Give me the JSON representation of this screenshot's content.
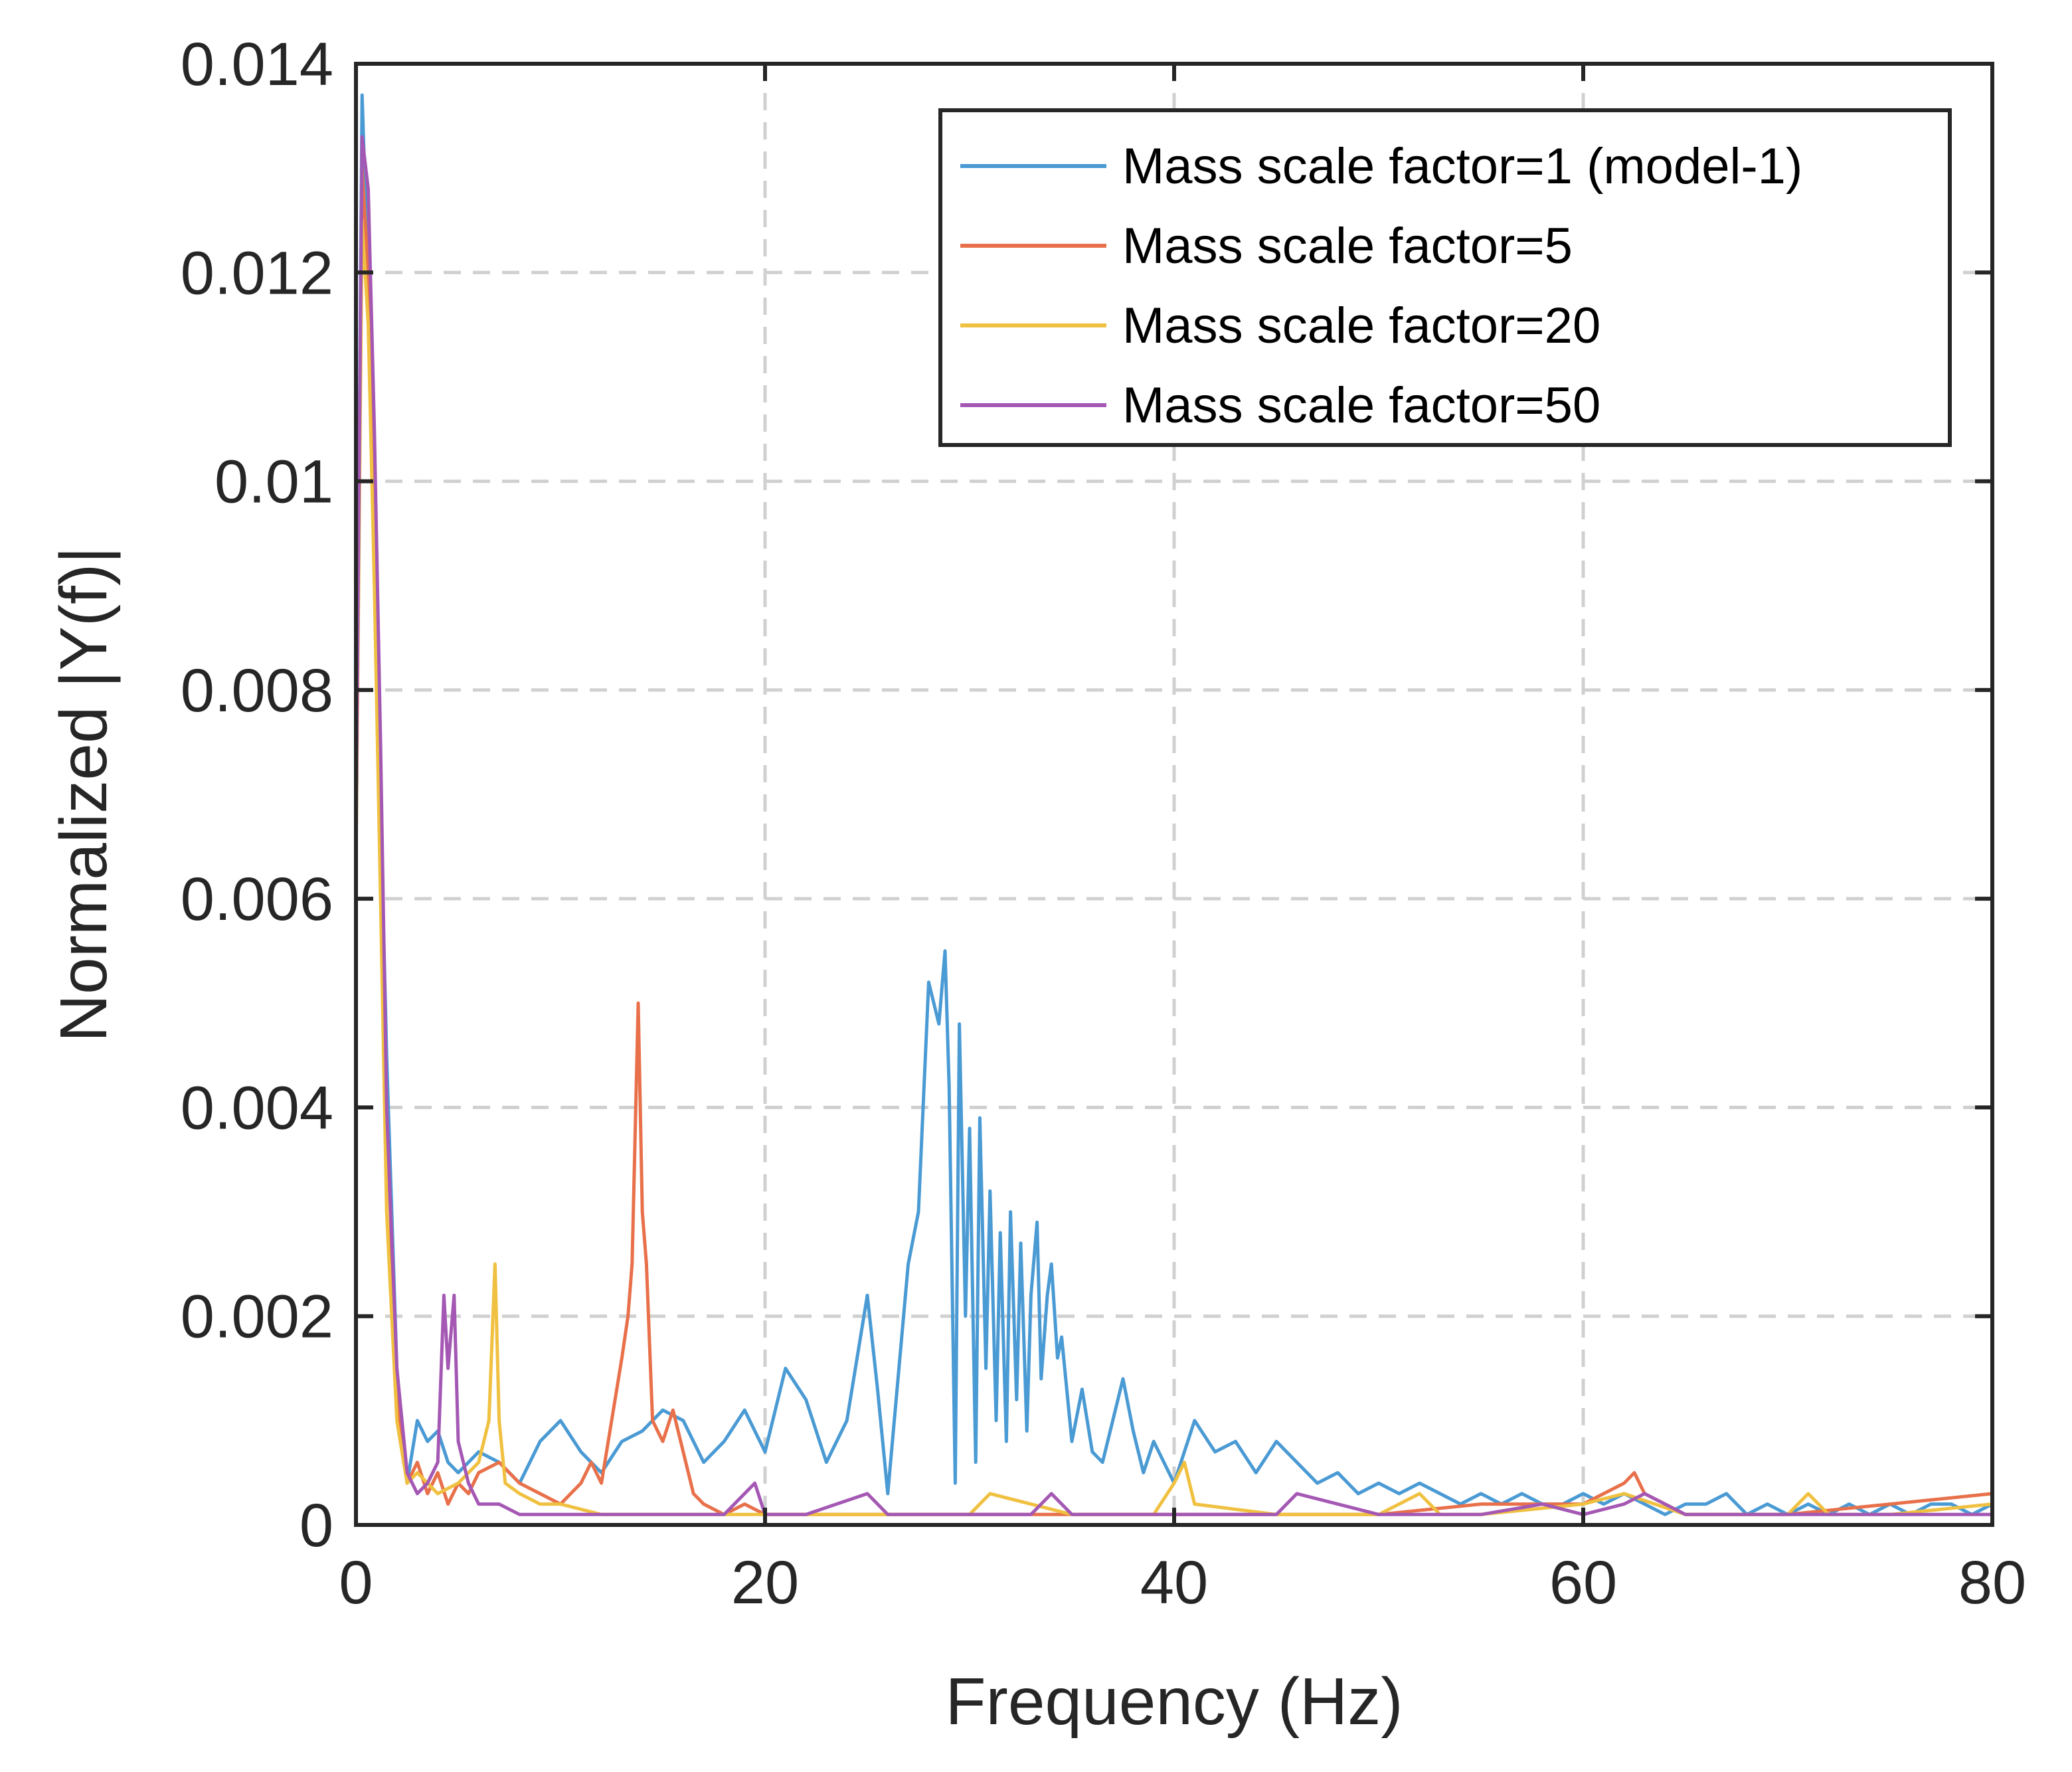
{
  "chart_data": {
    "type": "line",
    "xlabel": "Frequency (Hz)",
    "ylabel": "Normalized |Y(f)|",
    "xlim": [
      0,
      80
    ],
    "ylim": [
      0,
      0.014
    ],
    "xticks": [
      0,
      20,
      40,
      60,
      80
    ],
    "xtick_labels": [
      "0",
      "20",
      "40",
      "60",
      "80"
    ],
    "yticks": [
      0,
      0.002,
      0.004,
      0.006,
      0.008,
      0.01,
      0.012,
      0.014
    ],
    "ytick_labels": [
      "0",
      "0.002",
      "0.004",
      "0.006",
      "0.008",
      "0.01",
      "0.012",
      "0.014"
    ],
    "grid": true,
    "legend_position": "top-right",
    "series": [
      {
        "name": "Mass scale factor=1 (model-1)",
        "color": "#4a9ad4",
        "x": [
          0,
          0.3,
          0.5,
          0.8,
          1.0,
          1.5,
          2.0,
          2.5,
          3.0,
          3.5,
          4.0,
          4.5,
          5.0,
          6.0,
          7.0,
          8.0,
          9.0,
          10.0,
          11.0,
          12.0,
          13.0,
          14.0,
          15.0,
          16.0,
          17.0,
          18.0,
          19.0,
          20.0,
          21.0,
          22.0,
          23.0,
          24.0,
          25.0,
          25.5,
          26.0,
          26.5,
          27.0,
          27.5,
          28.0,
          28.5,
          28.8,
          29.0,
          29.3,
          29.5,
          29.8,
          30.0,
          30.3,
          30.5,
          30.8,
          31.0,
          31.3,
          31.5,
          31.8,
          32.0,
          32.3,
          32.5,
          32.8,
          33.0,
          33.3,
          33.5,
          33.8,
          34.0,
          34.3,
          34.5,
          35.0,
          35.5,
          36.0,
          36.5,
          37.0,
          37.5,
          38.0,
          38.5,
          39.0,
          40.0,
          41.0,
          42.0,
          43.0,
          44.0,
          45.0,
          46.0,
          47.0,
          48.0,
          49.0,
          50.0,
          51.0,
          52.0,
          53.0,
          54.0,
          55.0,
          56.0,
          57.0,
          58.0,
          59.0,
          60.0,
          61.0,
          62.0,
          63.0,
          64.0,
          65.0,
          66.0,
          67.0,
          68.0,
          69.0,
          70.0,
          71.0,
          72.0,
          73.0,
          74.0,
          75.0,
          76.0,
          77.0,
          78.0,
          79.0,
          80.0
        ],
        "y": [
          0.0065,
          0.0137,
          0.0125,
          0.011,
          0.0085,
          0.0045,
          0.0015,
          0.0004,
          0.001,
          0.0008,
          0.0009,
          0.0006,
          0.0005,
          0.0007,
          0.0006,
          0.0004,
          0.0008,
          0.001,
          0.0007,
          0.0005,
          0.0008,
          0.0009,
          0.0011,
          0.001,
          0.0006,
          0.0008,
          0.0011,
          0.0007,
          0.0015,
          0.0012,
          0.0006,
          0.001,
          0.0022,
          0.0013,
          0.0003,
          0.0014,
          0.0025,
          0.003,
          0.0052,
          0.0048,
          0.0055,
          0.0042,
          0.0004,
          0.0048,
          0.002,
          0.0038,
          0.0006,
          0.0039,
          0.0015,
          0.0032,
          0.001,
          0.0028,
          0.0008,
          0.003,
          0.0012,
          0.0027,
          0.0009,
          0.0022,
          0.0029,
          0.0014,
          0.0022,
          0.0025,
          0.0016,
          0.0018,
          0.0008,
          0.0013,
          0.0007,
          0.0006,
          0.001,
          0.0014,
          0.0009,
          0.0005,
          0.0008,
          0.0004,
          0.001,
          0.0007,
          0.0008,
          0.0005,
          0.0008,
          0.0006,
          0.0004,
          0.0005,
          0.0003,
          0.0004,
          0.0003,
          0.0004,
          0.0003,
          0.0002,
          0.0003,
          0.0002,
          0.0003,
          0.0002,
          0.0002,
          0.0003,
          0.0002,
          0.0003,
          0.0002,
          0.0001,
          0.0002,
          0.0002,
          0.0003,
          0.0001,
          0.0002,
          0.0001,
          0.0002,
          0.0001,
          0.0002,
          0.0001,
          0.0002,
          0.0001,
          0.0002,
          0.0002,
          0.0001,
          0.0002
        ]
      },
      {
        "name": "Mass scale factor=5",
        "color": "#e8704a",
        "x": [
          0,
          0.3,
          0.6,
          0.9,
          1.2,
          1.5,
          2.0,
          2.5,
          3.0,
          3.5,
          4.0,
          4.5,
          5.0,
          5.5,
          6.0,
          7.0,
          8.0,
          9.0,
          10.0,
          11.0,
          11.5,
          12.0,
          12.5,
          13.0,
          13.3,
          13.5,
          13.8,
          14.0,
          14.2,
          14.5,
          15.0,
          15.5,
          16.0,
          16.5,
          17.0,
          18.0,
          19.0,
          20.0,
          22.0,
          24.0,
          26.0,
          28.0,
          30.0,
          35.0,
          40.0,
          45.0,
          50.0,
          55.0,
          60.0,
          61.0,
          62.0,
          62.5,
          63.0,
          64.0,
          65.0,
          70.0,
          75.0,
          80.0
        ],
        "y": [
          0.0063,
          0.013,
          0.012,
          0.0095,
          0.0065,
          0.004,
          0.0012,
          0.0004,
          0.0006,
          0.0003,
          0.0005,
          0.0002,
          0.0004,
          0.0003,
          0.0005,
          0.0006,
          0.0004,
          0.0003,
          0.0002,
          0.0004,
          0.0006,
          0.0004,
          0.001,
          0.0016,
          0.002,
          0.0025,
          0.005,
          0.003,
          0.0025,
          0.001,
          0.0008,
          0.0011,
          0.0007,
          0.0003,
          0.0002,
          0.0001,
          0.0002,
          0.0001,
          0.0001,
          0.0001,
          0.0001,
          0.0001,
          0.0001,
          0.0001,
          0.0001,
          0.0001,
          0.0001,
          0.0002,
          0.0002,
          0.0003,
          0.0004,
          0.0005,
          0.0003,
          0.0002,
          0.0001,
          0.0001,
          0.0002,
          0.0003
        ]
      },
      {
        "name": "Mass scale factor=20",
        "color": "#f0c040",
        "x": [
          0,
          0.3,
          0.6,
          0.9,
          1.2,
          1.5,
          2.0,
          2.5,
          3.0,
          4.0,
          5.0,
          6.0,
          6.5,
          6.8,
          7.0,
          7.3,
          8.0,
          9.0,
          10.0,
          12.0,
          15.0,
          20.0,
          25.0,
          30.0,
          31.0,
          35.0,
          39.0,
          40.0,
          40.5,
          41.0,
          45.0,
          50.0,
          52.0,
          53.0,
          55.0,
          60.0,
          62.0,
          65.0,
          70.0,
          71.0,
          72.0,
          75.0,
          80.0
        ],
        "y": [
          0.0063,
          0.0125,
          0.0115,
          0.009,
          0.006,
          0.003,
          0.001,
          0.0004,
          0.0005,
          0.0003,
          0.0004,
          0.0006,
          0.001,
          0.0025,
          0.001,
          0.0004,
          0.0003,
          0.0002,
          0.0002,
          0.0001,
          0.0001,
          0.0001,
          0.0001,
          0.0001,
          0.0003,
          0.0001,
          0.0001,
          0.0004,
          0.0006,
          0.0002,
          0.0001,
          0.0001,
          0.0003,
          0.0001,
          0.0001,
          0.0002,
          0.0003,
          0.0001,
          0.0001,
          0.0003,
          0.0001,
          0.0001,
          0.0002
        ]
      },
      {
        "name": "Mass scale factor=50",
        "color": "#a458b4",
        "x": [
          0,
          0.3,
          0.6,
          0.9,
          1.2,
          1.5,
          2.0,
          2.5,
          3.0,
          3.5,
          4.0,
          4.3,
          4.5,
          4.8,
          5.0,
          5.5,
          6.0,
          7.0,
          8.0,
          10.0,
          12.0,
          15.0,
          18.0,
          19.5,
          20.0,
          22.0,
          25.0,
          26.0,
          30.0,
          33.0,
          34.0,
          35.0,
          40.0,
          45.0,
          46.0,
          50.0,
          55.0,
          58.0,
          60.0,
          62.0,
          63.0,
          65.0,
          70.0,
          75.0,
          80.0
        ],
        "y": [
          0.0065,
          0.0133,
          0.0128,
          0.0105,
          0.0075,
          0.004,
          0.0015,
          0.0005,
          0.0003,
          0.0004,
          0.0006,
          0.0022,
          0.0015,
          0.0022,
          0.0008,
          0.0004,
          0.0002,
          0.0002,
          0.0001,
          0.0001,
          0.0001,
          0.0001,
          0.0001,
          0.0004,
          0.0001,
          0.0001,
          0.0003,
          0.0001,
          0.0001,
          0.0001,
          0.0003,
          0.0001,
          0.0001,
          0.0001,
          0.0003,
          0.0001,
          0.0001,
          0.0002,
          0.0001,
          0.0002,
          0.0003,
          0.0001,
          0.0001,
          0.0001,
          0.0001
        ]
      }
    ]
  }
}
